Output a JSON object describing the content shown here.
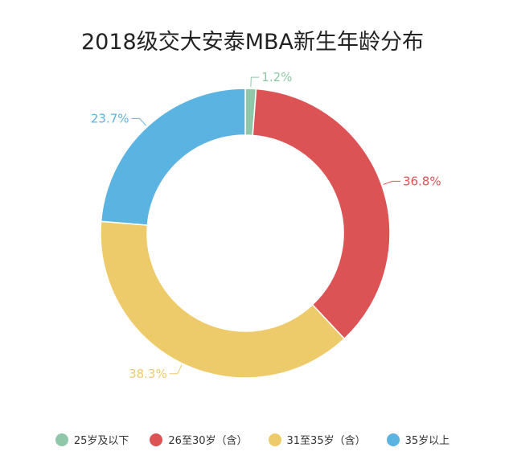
{
  "chart_data": {
    "type": "pie",
    "variant": "donut",
    "title": "2018级交大安泰MBA新生年龄分布",
    "categories": [
      "25岁及以下",
      "26至30岁（含）",
      "31至35岁（含）",
      "35岁以上"
    ],
    "values": [
      1.2,
      36.8,
      38.3,
      23.7
    ],
    "labels": [
      "1.2%",
      "36.8%",
      "38.3%",
      "23.7%"
    ],
    "colors": [
      "#8fc7a8",
      "#dc5356",
      "#eecb6a",
      "#5bb3e2"
    ],
    "legend_position": "bottom"
  }
}
